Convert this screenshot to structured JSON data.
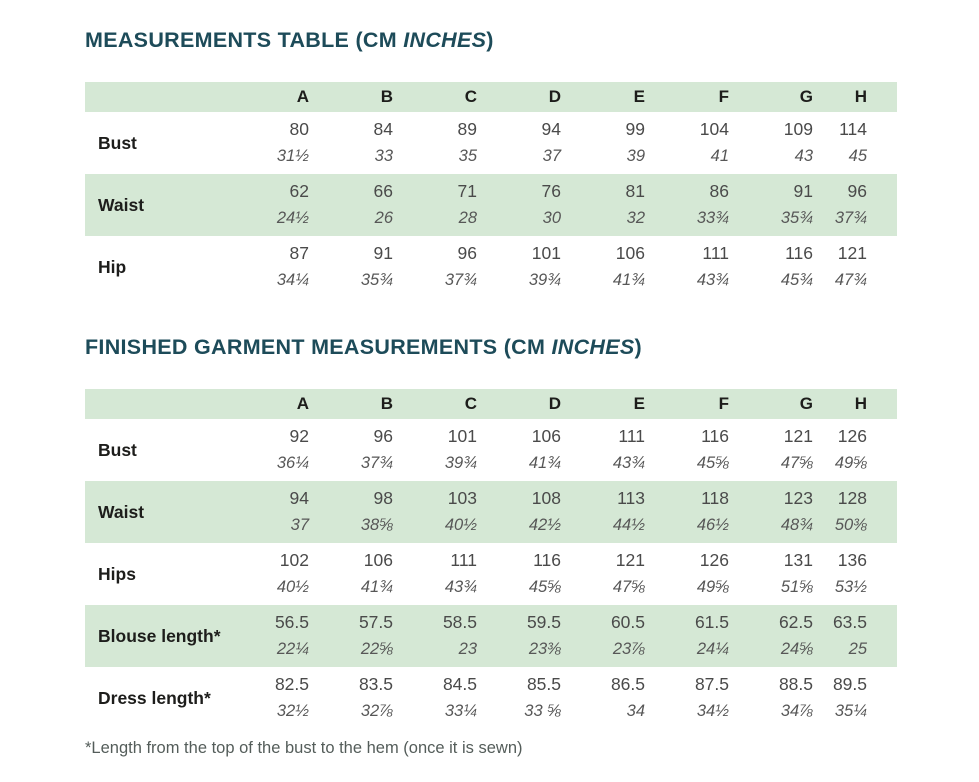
{
  "colors": {
    "title_teal": "#1d4b59",
    "row_green": "#d5e8d5",
    "label_black": "#1d1d1b",
    "cm_gray": "#4a4a4a",
    "inches_gray": "#575757"
  },
  "footnote": "*Length from the top of the bust to the hem (once it is sewn)",
  "tables": [
    {
      "title_prefix": "MEASUREMENTS TABLE (CM ",
      "title_italic": "INCHES",
      "title_suffix": ")",
      "columns": [
        "A",
        "B",
        "C",
        "D",
        "E",
        "F",
        "G",
        "H"
      ],
      "rows": [
        {
          "label": "Bust",
          "cm": [
            "80",
            "84",
            "89",
            "94",
            "99",
            "104",
            "109",
            "114"
          ],
          "inches": [
            "31½",
            "33",
            "35",
            "37",
            "39",
            "41",
            "43",
            "45"
          ]
        },
        {
          "label": "Waist",
          "cm": [
            "62",
            "66",
            "71",
            "76",
            "81",
            "86",
            "91",
            "96"
          ],
          "inches": [
            "24½",
            "26",
            "28",
            "30",
            "32",
            "33¾",
            "35¾",
            "37¾"
          ]
        },
        {
          "label": "Hip",
          "cm": [
            "87",
            "91",
            "96",
            "101",
            "106",
            "111",
            "116",
            "121"
          ],
          "inches": [
            "34¼",
            "35¾",
            "37¾",
            "39¾",
            "41¾",
            "43¾",
            "45¾",
            "47¾"
          ]
        }
      ]
    },
    {
      "title_prefix": "FINISHED GARMENT MEASUREMENTS (CM ",
      "title_italic": "INCHES",
      "title_suffix": ")",
      "columns": [
        "A",
        "B",
        "C",
        "D",
        "E",
        "F",
        "G",
        "H"
      ],
      "rows": [
        {
          "label": "Bust",
          "cm": [
            "92",
            "96",
            "101",
            "106",
            "111",
            "116",
            "121",
            "126"
          ],
          "inches": [
            "36¼",
            "37¾",
            "39¾",
            "41¾",
            "43¾",
            "45⅝",
            "47⅝",
            "49⅝"
          ]
        },
        {
          "label": "Waist",
          "cm": [
            "94",
            "98",
            "103",
            "108",
            "113",
            "118",
            "123",
            "128"
          ],
          "inches": [
            "37",
            "38⅝",
            "40½",
            "42½",
            "44½",
            "46½",
            "48¾",
            "50⅜"
          ]
        },
        {
          "label": "Hips",
          "cm": [
            "102",
            "106",
            "111",
            "116",
            "121",
            "126",
            "131",
            "136"
          ],
          "inches": [
            "40½",
            "41¾",
            "43¾",
            "45⅝",
            "47⅝",
            "49⅝",
            "51⅝",
            "53½"
          ]
        },
        {
          "label": "Blouse length*",
          "cm": [
            "56.5",
            "57.5",
            "58.5",
            "59.5",
            "60.5",
            "61.5",
            "62.5",
            "63.5"
          ],
          "inches": [
            "22¼",
            "22⅝",
            "23",
            "23⅜",
            "23⅞",
            "24¼",
            "24⅝",
            "25"
          ]
        },
        {
          "label": "Dress length*",
          "cm": [
            "82.5",
            "83.5",
            "84.5",
            "85.5",
            "86.5",
            "87.5",
            "88.5",
            "89.5"
          ],
          "inches": [
            "32½",
            "32⅞",
            "33¼",
            "33 ⅝",
            "34",
            "34½",
            "34⅞",
            "35¼"
          ]
        }
      ]
    }
  ]
}
